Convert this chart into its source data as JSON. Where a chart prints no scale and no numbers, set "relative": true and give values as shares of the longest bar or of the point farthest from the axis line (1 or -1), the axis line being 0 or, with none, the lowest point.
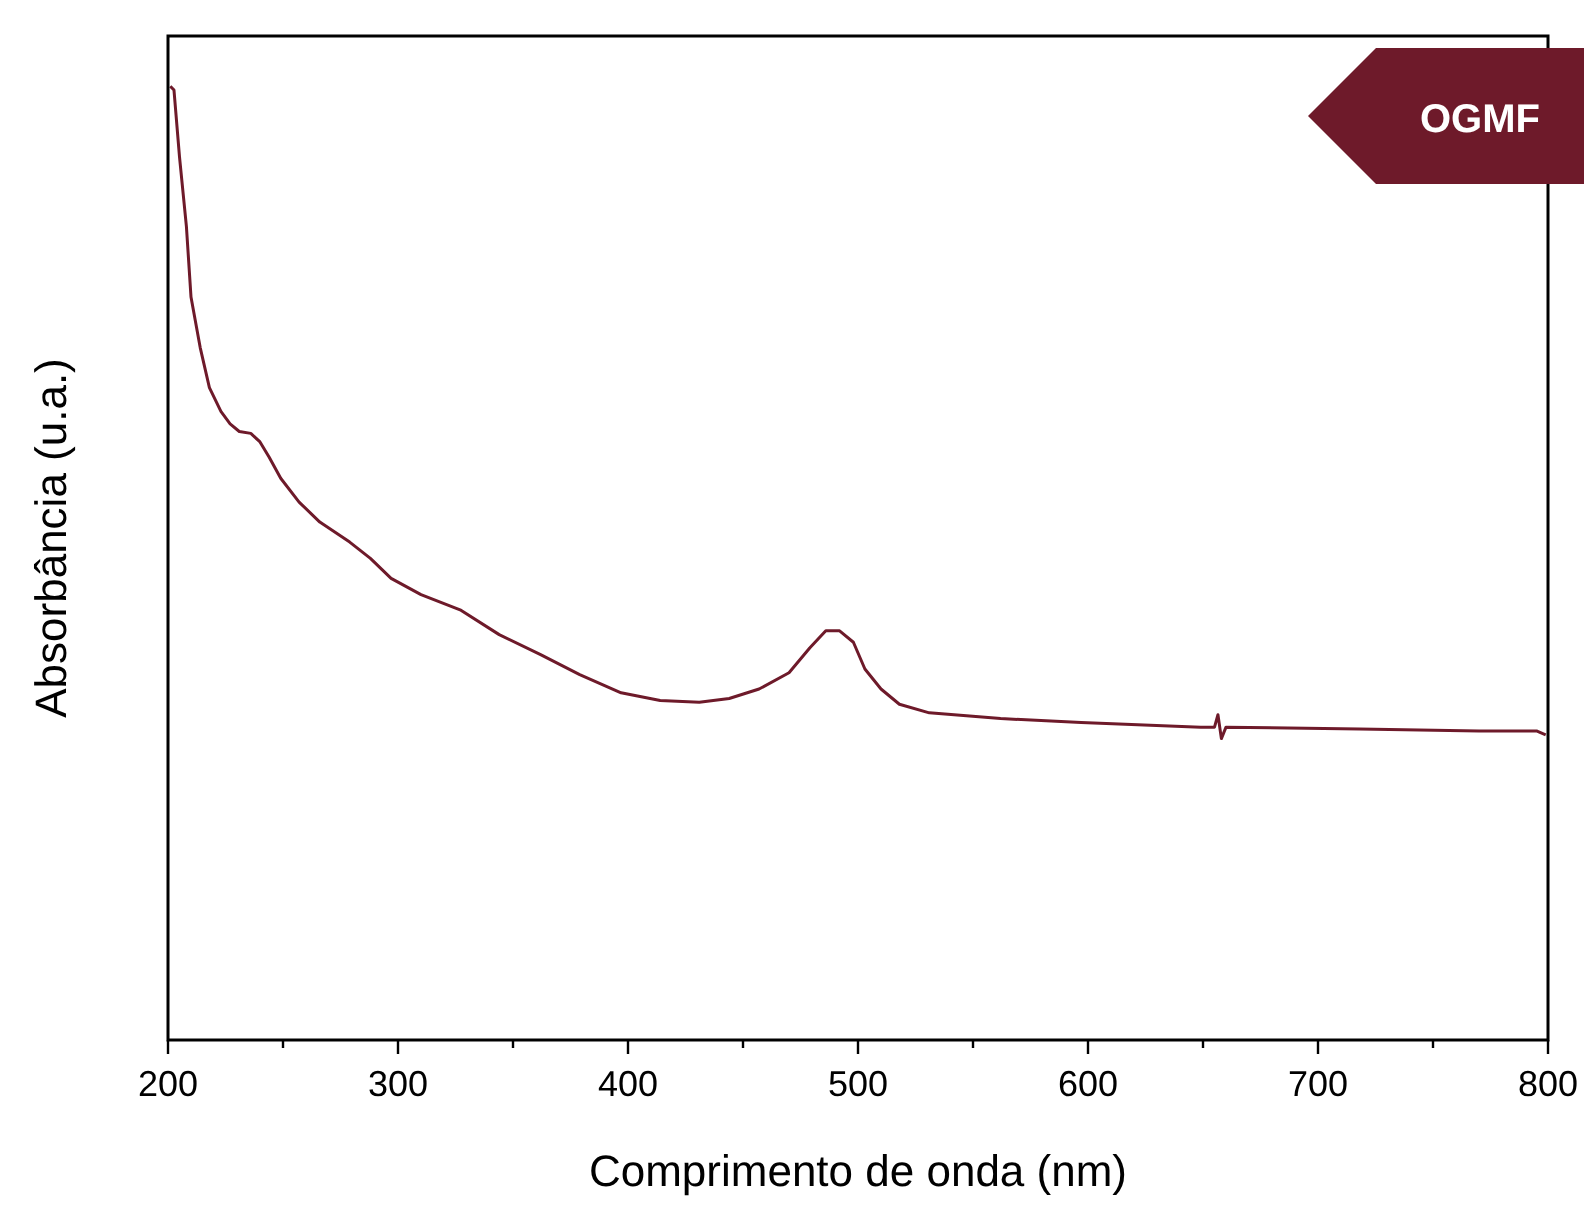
{
  "chart_data": {
    "type": "line",
    "xlabel": "Comprimento de onda (nm)",
    "ylabel": "Absorbância (u.a.)",
    "relative": true,
    "xlim": [
      200,
      800
    ],
    "xticks": [
      200,
      {
        "value": 250,
        "label": null
      },
      300,
      {
        "value": 350,
        "label": null
      },
      400,
      {
        "value": 450,
        "label": null
      },
      500,
      {
        "value": 550,
        "label": null
      },
      600,
      {
        "value": 650,
        "label": null
      },
      700,
      {
        "value": 750,
        "label": null
      },
      800
    ],
    "legend": "top right",
    "grid": false,
    "series": [
      {
        "name": "OGMF",
        "color": "#6e1a2a",
        "x": [
          201,
          202.6,
          205,
          208,
          210,
          214,
          218,
          223,
          227,
          231,
          236,
          240,
          244,
          249,
          257,
          266,
          279,
          288,
          297,
          310,
          327,
          344,
          362,
          379,
          397,
          414,
          431,
          444,
          457,
          470,
          479,
          486,
          492,
          498,
          503,
          510,
          518,
          531,
          562,
          597,
          649,
          655,
          656.5,
          658,
          660,
          718,
          770,
          795,
          799
        ],
        "values": [
          1.0,
          0.996,
          0.926,
          0.853,
          0.779,
          0.726,
          0.684,
          0.659,
          0.646,
          0.638,
          0.636,
          0.627,
          0.611,
          0.589,
          0.564,
          0.543,
          0.522,
          0.505,
          0.484,
          0.467,
          0.451,
          0.425,
          0.404,
          0.383,
          0.364,
          0.356,
          0.354,
          0.358,
          0.368,
          0.385,
          0.411,
          0.429,
          0.429,
          0.417,
          0.389,
          0.368,
          0.352,
          0.343,
          0.337,
          0.333,
          0.328,
          0.328,
          0.341,
          0.316,
          0.328,
          0.326,
          0.324,
          0.324,
          0.32
        ]
      }
    ]
  }
}
